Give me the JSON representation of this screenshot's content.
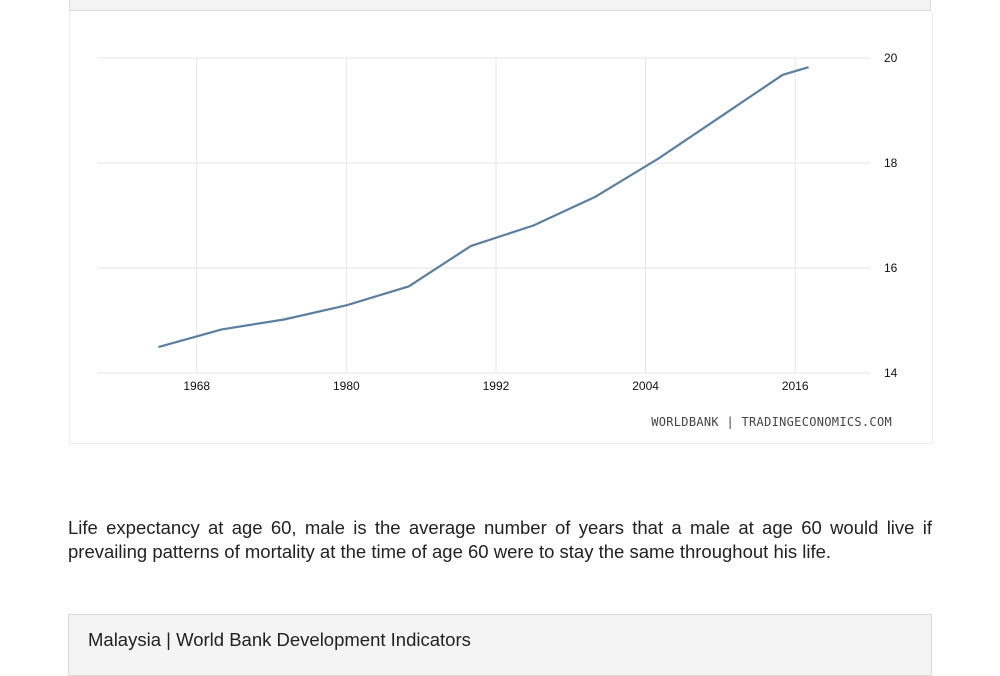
{
  "chart_data": {
    "type": "line",
    "x": [
      1965,
      1970,
      1975,
      1980,
      1985,
      1990,
      1995,
      2000,
      2005,
      2010,
      2015,
      2017
    ],
    "series": [
      {
        "values": [
          14.5,
          14.83,
          15.02,
          15.29,
          15.65,
          16.42,
          16.81,
          17.36,
          18.08,
          18.88,
          19.68,
          19.82
        ]
      }
    ],
    "x_ticks": [
      "1968",
      "1980",
      "1992",
      "2004",
      "2016"
    ],
    "y_ticks": [
      "14",
      "16",
      "18",
      "20"
    ],
    "xlim": [
      1960,
      2022
    ],
    "ylim": [
      14,
      20
    ],
    "grid": true,
    "y_axis_side": "right",
    "line_color": "#5b7fa0",
    "source": "WORLDBANK | TRADINGECONOMICS.COM"
  },
  "description": "Life expectancy at age 60, male is the average number of years that a male at age 60 would live if prevailing patterns of mortality at the time of age 60 were to stay the same throughout his life.",
  "indicators_box": {
    "title": "Malaysia | World Bank Development Indicators"
  }
}
